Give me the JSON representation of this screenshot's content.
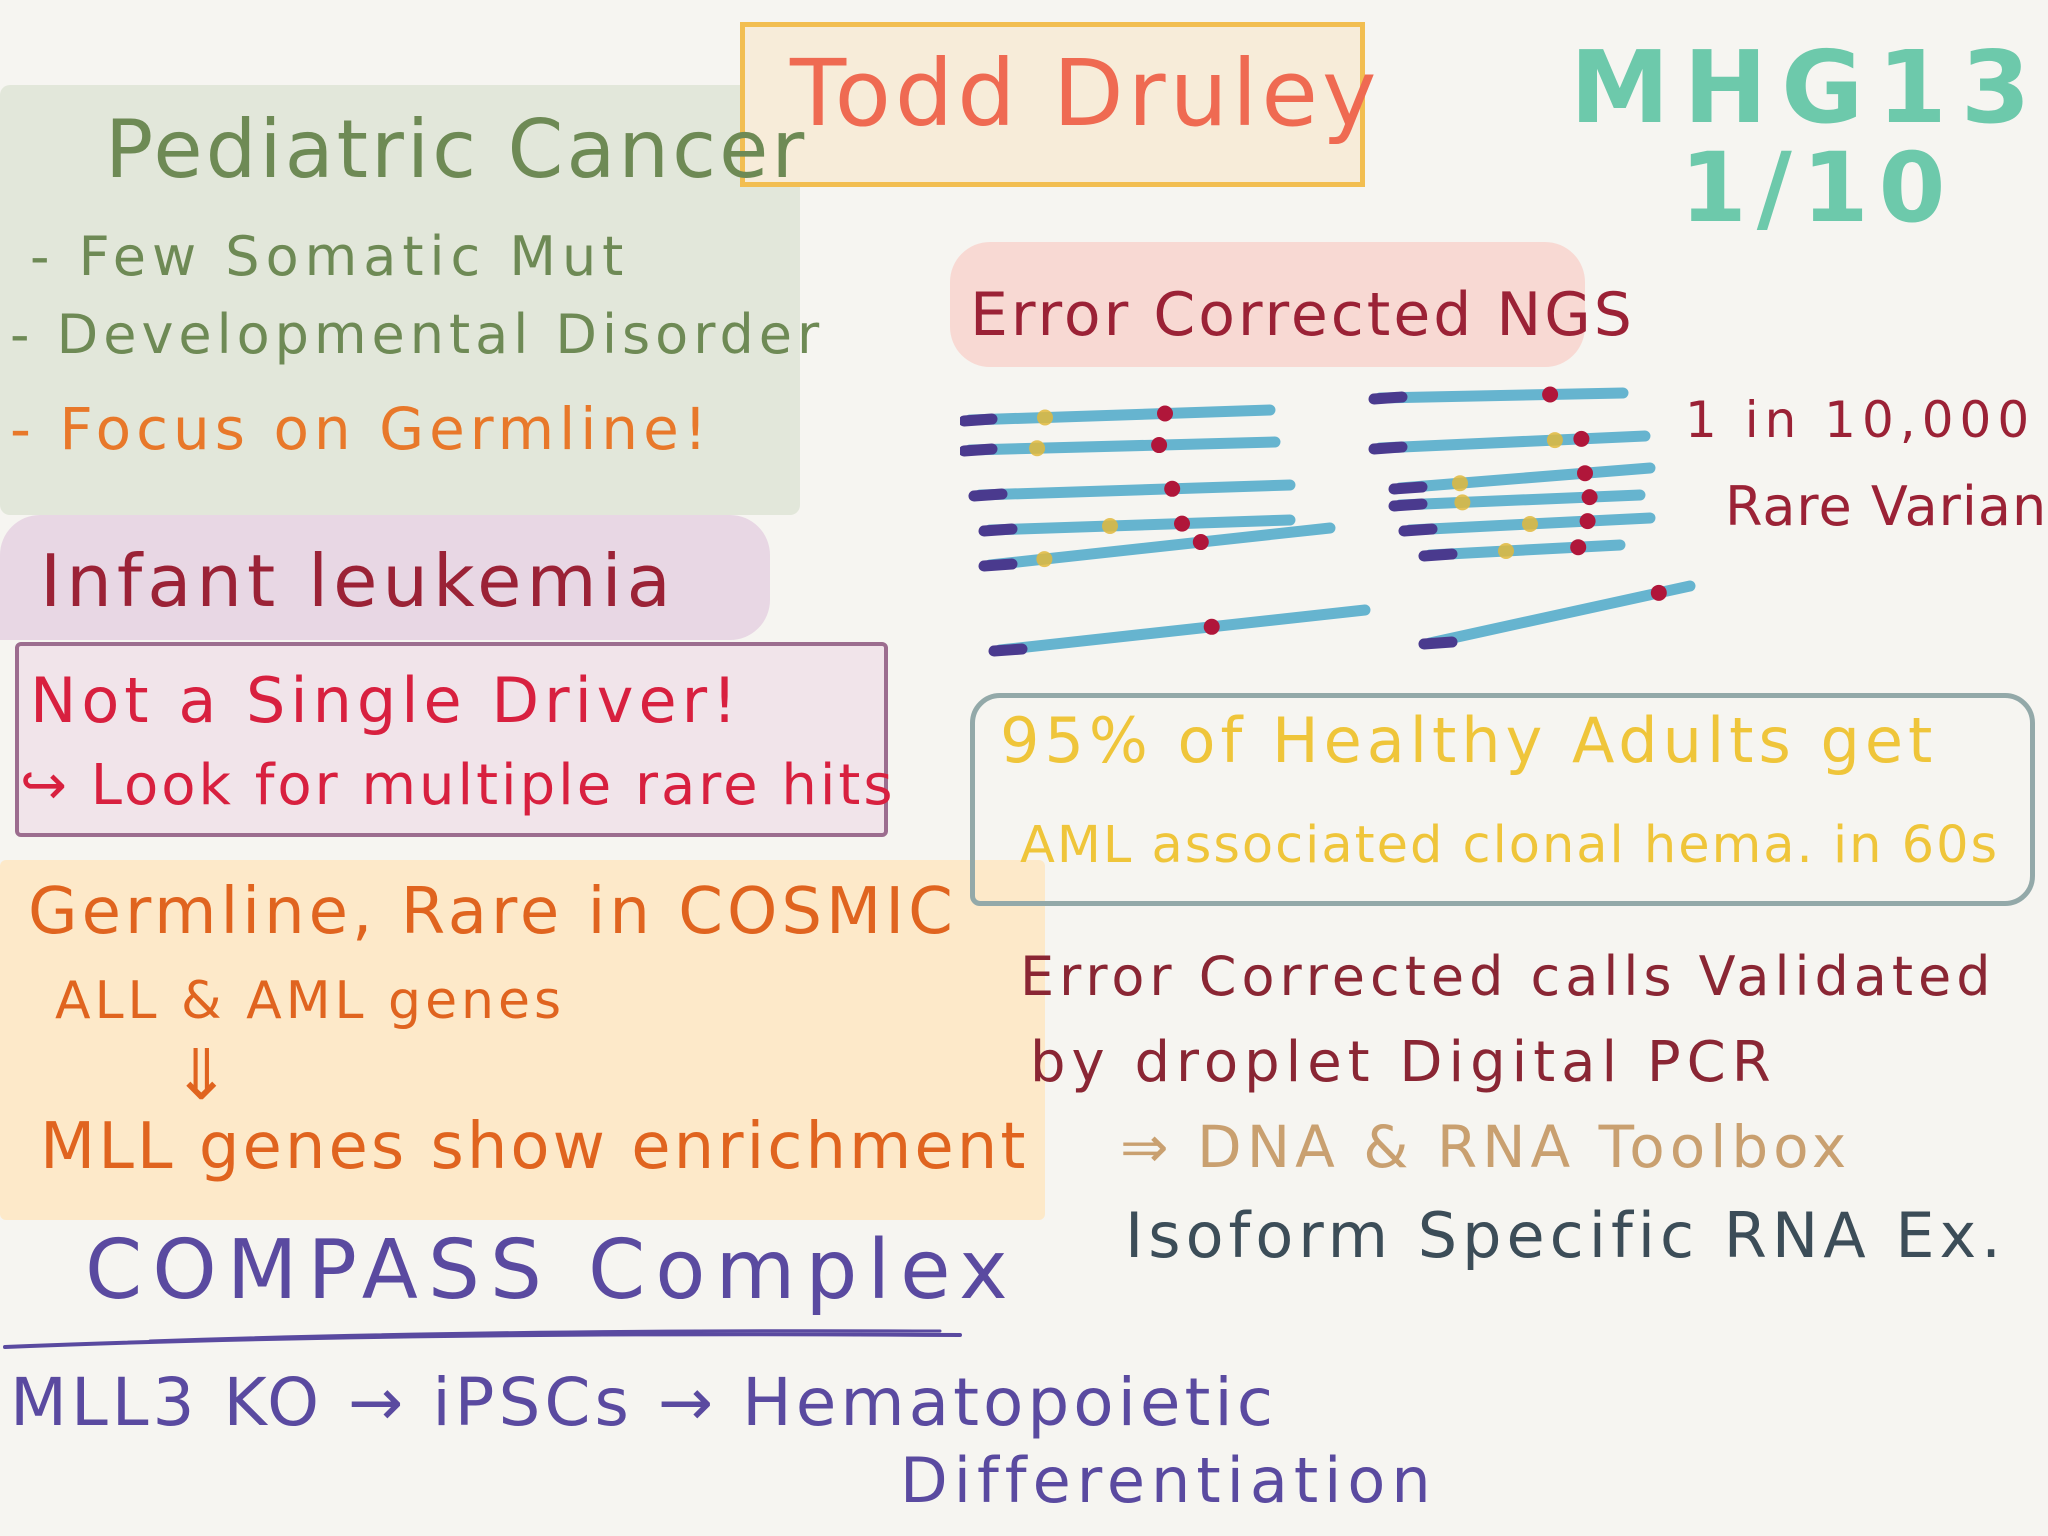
{
  "header": {
    "title": "Todd Druley",
    "session": "MHG13",
    "date": "1/10"
  },
  "pediatric": {
    "heading": "Pediatric Cancer",
    "items": [
      "- Few Somatic Mut",
      "- Developmental Disorder",
      "- Focus on Germline!"
    ]
  },
  "infant": {
    "heading": "Infant leukemia",
    "line1": "Not a Single Driver!",
    "line2": "↪ Look for multiple rare hits"
  },
  "germline": {
    "line1": "Germline, Rare in COSMIC",
    "line2": "ALL & AML genes",
    "arrow": "⇓",
    "line3": "MLL genes show enrichment"
  },
  "compass": {
    "heading": "COMPASS Complex",
    "line1": "MLL3 KO → iPSCs → Hematopoietic",
    "line2": "Differentiation"
  },
  "error_corrected": {
    "heading": "Error Corrected NGS",
    "rate": "1 in 10,000",
    "label": "Rare Variants"
  },
  "healthy": {
    "line1": "95% of Healthy Adults get",
    "line2": "AML associated clonal hema. in 60s"
  },
  "validation": {
    "line1": "Error Corrected calls Validated",
    "line2": "by droplet Digital PCR",
    "line3": "⇒ DNA & RNA Toolbox",
    "line4": "Isoform Specific RNA Ex."
  },
  "colors": {
    "green_text": "#6e8a55",
    "orange_text": "#e8782a",
    "red_text": "#9b2236",
    "crimson_text": "#d8203f",
    "germline_text": "#e0641f",
    "purple_text": "#5a4aa0",
    "yellow_text": "#efc53a",
    "brown_text": "#8a2634",
    "tan_text": "#c9a070",
    "slate_text": "#3c4d58",
    "teal_text": "#6dc9ab",
    "title_text": "#ef6a52",
    "read_line": "#66b4cf",
    "read_start": "#4a3a8e",
    "variant_red": "#b0163a",
    "variant_yellow": "#e1b93c"
  }
}
